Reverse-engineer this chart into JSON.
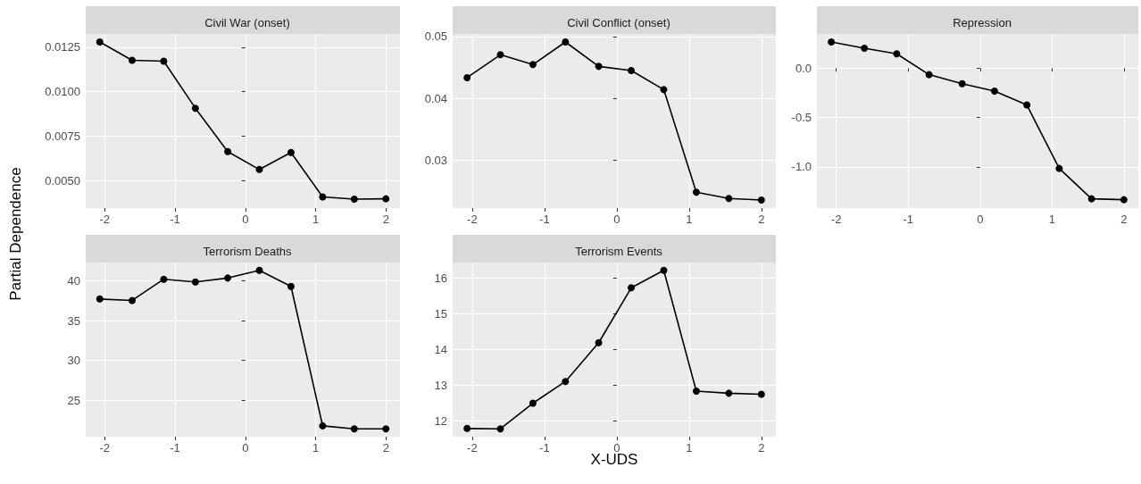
{
  "chart_data": [
    {
      "type": "line",
      "title": "Civil War (onset)",
      "ylabel": "Partial Dependence",
      "x": [
        -2.07,
        -1.61,
        -1.16,
        -0.71,
        -0.25,
        0.2,
        0.65,
        1.1,
        1.55,
        2.0
      ],
      "series": [
        {
          "color": "#000000",
          "values": [
            0.0128,
            0.01177,
            0.01172,
            0.00907,
            0.00663,
            0.00562,
            0.00658,
            0.00408,
            0.00395,
            0.00397
          ]
        }
      ],
      "xlim": [
        -2.27,
        2.2
      ],
      "xticks": [
        -2,
        -1,
        0,
        1,
        2
      ],
      "ylim": [
        0.00345,
        0.01325
      ],
      "yticks": [
        {
          "value": 0.005,
          "label": "0.0050"
        },
        {
          "value": 0.0075,
          "label": "0.0075"
        },
        {
          "value": 0.01,
          "label": "0.0100"
        },
        {
          "value": 0.0125,
          "label": "0.0125"
        }
      ],
      "grid": true,
      "marker": "circle",
      "line_style": "solid"
    },
    {
      "type": "line",
      "title": "Civil Conflict (onset)",
      "x": [
        -2.07,
        -1.61,
        -1.16,
        -0.71,
        -0.25,
        0.2,
        0.65,
        1.1,
        1.55,
        2.0
      ],
      "series": [
        {
          "color": "#000000",
          "values": [
            0.04337,
            0.04707,
            0.04548,
            0.04913,
            0.04519,
            0.04452,
            0.04144,
            0.02486,
            0.02385,
            0.02361
          ]
        }
      ],
      "xlim": [
        -2.27,
        2.2
      ],
      "xticks": [
        -2,
        -1,
        0,
        1,
        2
      ],
      "ylim": [
        0.02231,
        0.05043
      ],
      "yticks": [
        0.03,
        0.04,
        0.05
      ],
      "grid": true,
      "marker": "circle",
      "line_style": "solid"
    },
    {
      "type": "line",
      "title": "Repression",
      "x": [
        -2.07,
        -1.61,
        -1.16,
        -0.71,
        -0.25,
        0.2,
        0.65,
        1.1,
        1.55,
        2.0
      ],
      "series": [
        {
          "color": "#000000",
          "values": [
            0.265,
            0.202,
            0.145,
            -0.066,
            -0.157,
            -0.232,
            -0.373,
            -1.015,
            -1.322,
            -1.331
          ]
        }
      ],
      "xlim": [
        -2.27,
        2.2
      ],
      "xticks": [
        -2,
        -1,
        0,
        1,
        2
      ],
      "ylim": [
        -1.416,
        0.346
      ],
      "yticks": [
        {
          "value": -1,
          "label": "-1.0"
        },
        {
          "value": -0.5,
          "label": "-0.5"
        },
        {
          "value": 0,
          "label": "0.0"
        }
      ],
      "grid": true,
      "marker": "circle",
      "line_style": "solid"
    },
    {
      "type": "line",
      "title": "Terrorism Deaths",
      "x": [
        -2.07,
        -1.61,
        -1.16,
        -0.71,
        -0.25,
        0.2,
        0.65,
        1.1,
        1.55,
        2.0
      ],
      "series": [
        {
          "color": "#000000",
          "values": [
            37.74,
            37.56,
            40.23,
            39.89,
            40.38,
            41.35,
            39.32,
            21.77,
            21.39,
            21.39
          ]
        }
      ],
      "xlim": [
        -2.27,
        2.2
      ],
      "xticks": [
        -2,
        -1,
        0,
        1,
        2
      ],
      "ylim": [
        20.41,
        42.33
      ],
      "yticks": [
        25,
        30,
        35,
        40
      ],
      "grid": true,
      "marker": "circle",
      "line_style": "solid"
    },
    {
      "type": "line",
      "title": "Terrorism Events",
      "xlabel": "X-UDS",
      "x": [
        -2.07,
        -1.61,
        -1.16,
        -0.71,
        -0.25,
        0.2,
        0.65,
        1.1,
        1.55,
        2.0
      ],
      "series": [
        {
          "color": "#000000",
          "values": [
            11.78,
            11.77,
            12.49,
            13.1,
            14.19,
            15.73,
            16.22,
            12.83,
            12.77,
            12.74
          ]
        }
      ],
      "xlim": [
        -2.27,
        2.2
      ],
      "xticks": [
        -2,
        -1,
        0,
        1,
        2
      ],
      "ylim": [
        11.55,
        16.44
      ],
      "yticks": [
        12,
        13,
        14,
        15,
        16
      ],
      "grid": true,
      "marker": "circle",
      "line_style": "solid"
    }
  ]
}
